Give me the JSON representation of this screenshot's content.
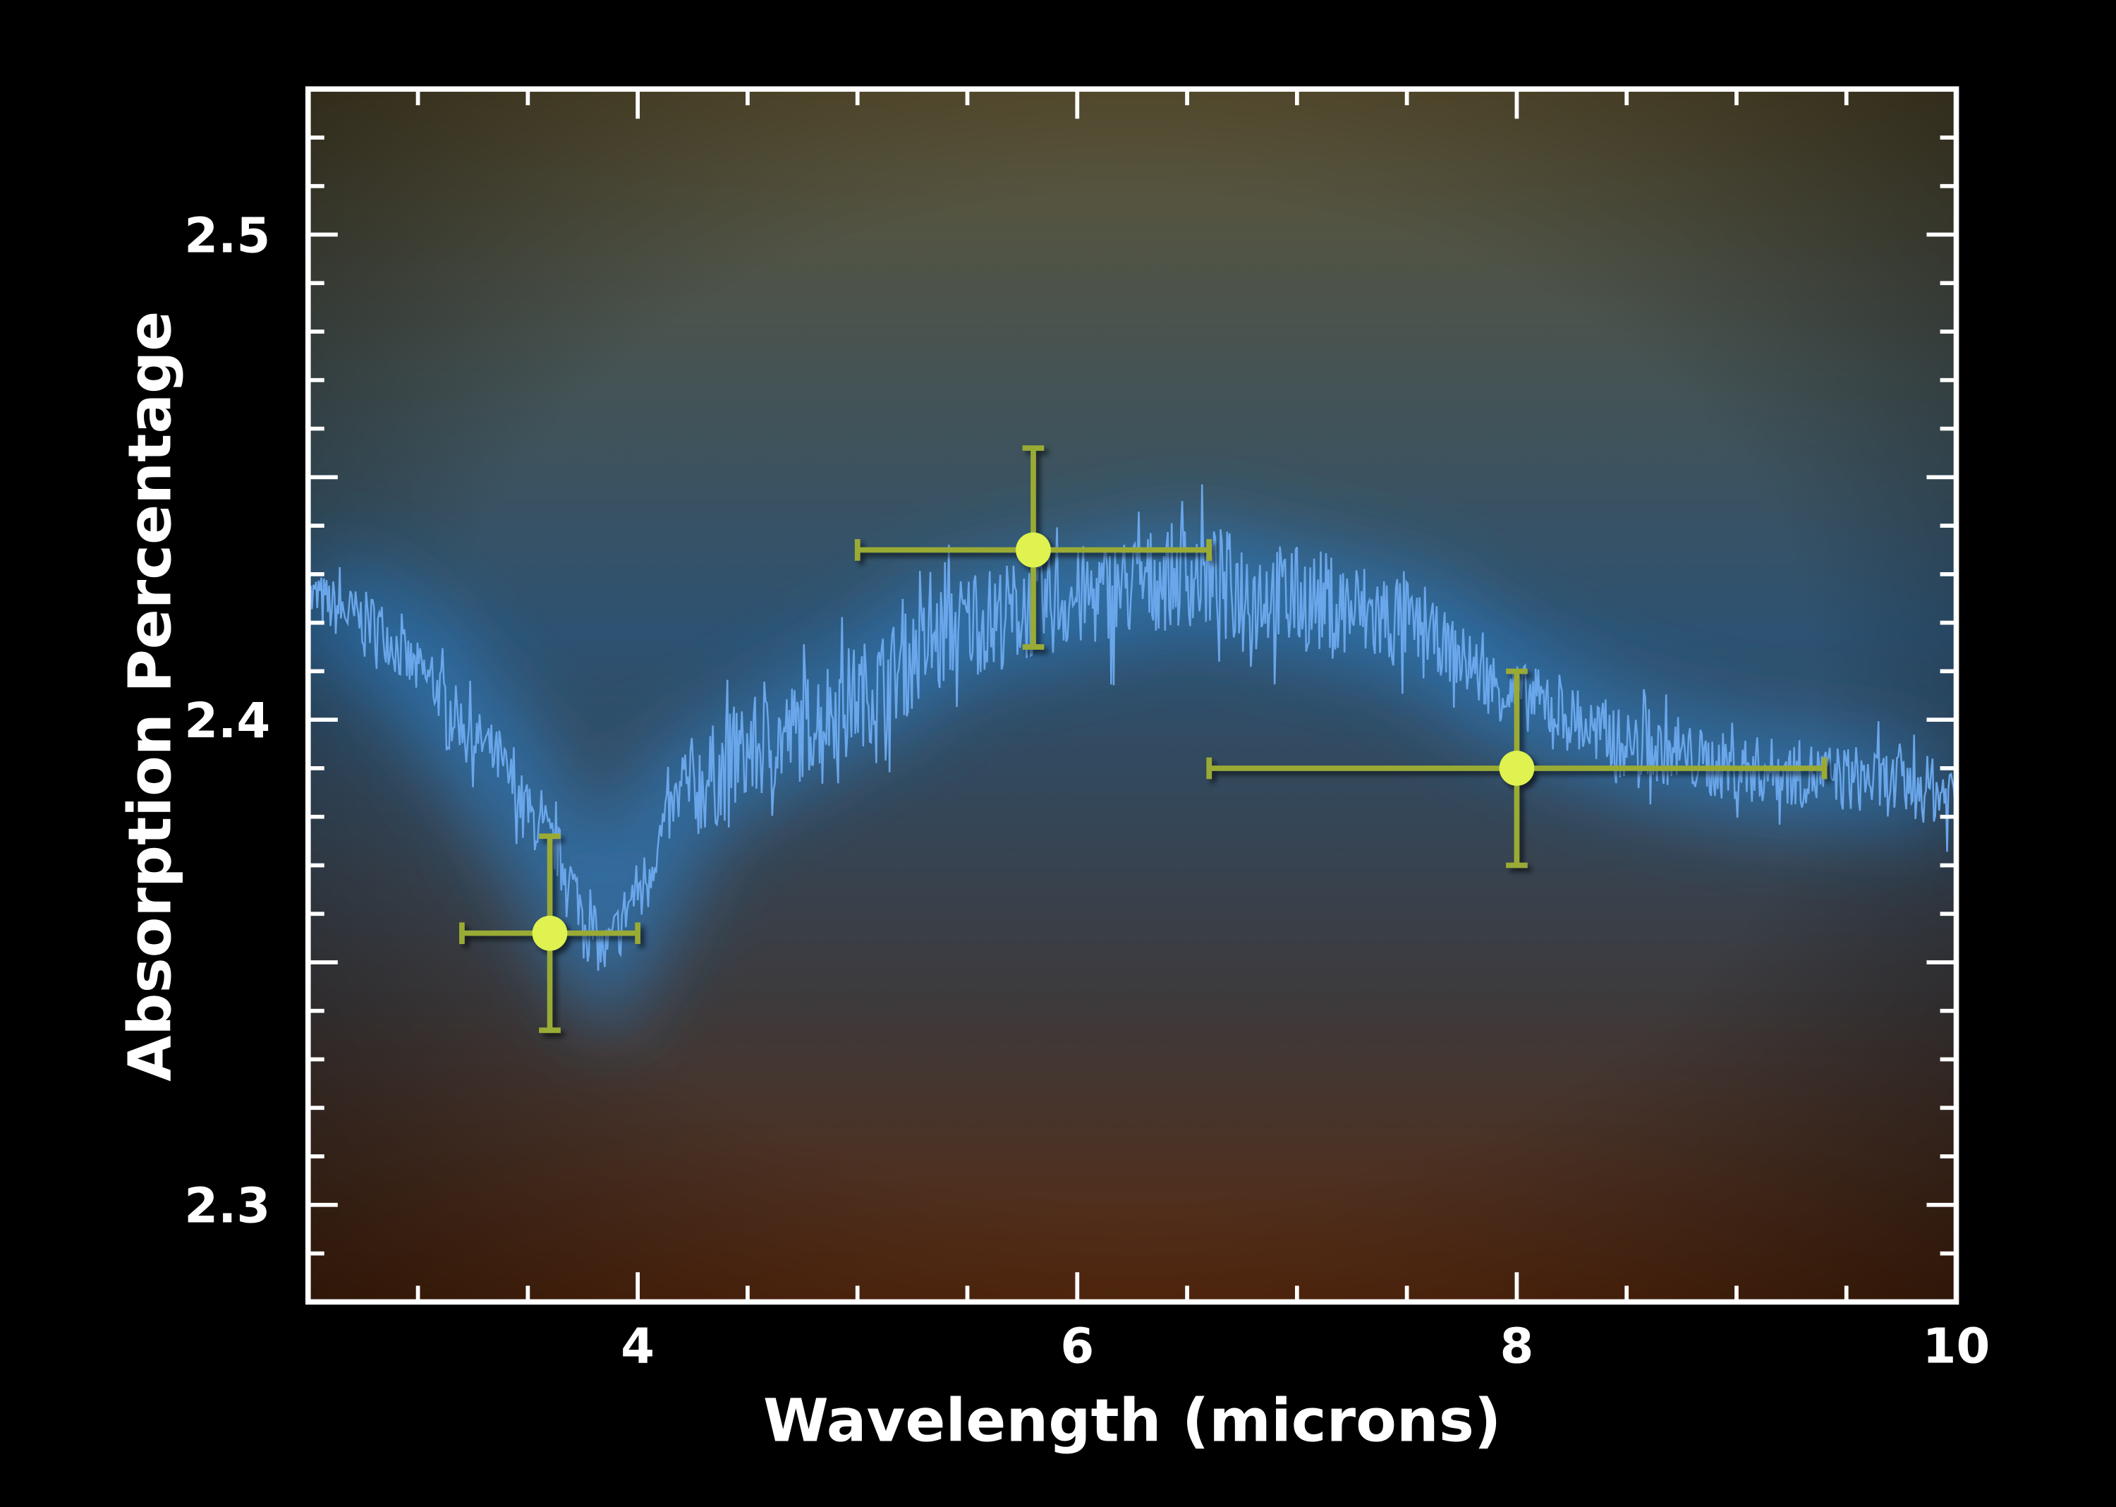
{
  "chart_data": {
    "type": "scatter",
    "title": "",
    "xlabel": "Wavelength (microns)",
    "ylabel": "Absorption Percentage",
    "xlim": [
      2.5,
      10
    ],
    "ylim": [
      2.28,
      2.53
    ],
    "x_ticks": [
      4,
      6,
      8,
      10
    ],
    "x_tick_labels": [
      "4",
      "6",
      "8",
      "10"
    ],
    "y_ticks": [
      2.3,
      2.4,
      2.5
    ],
    "y_tick_labels": [
      "2.3",
      "2.4",
      "2.5"
    ],
    "grid": false,
    "measurements": [
      {
        "x": 3.6,
        "y": 2.356,
        "x_err": [
          3.2,
          4.0
        ],
        "y_err": [
          2.336,
          2.376
        ]
      },
      {
        "x": 5.8,
        "y": 2.435,
        "x_err": [
          5.0,
          6.6
        ],
        "y_err": [
          2.415,
          2.456
        ]
      },
      {
        "x": 8.0,
        "y": 2.39,
        "x_err": [
          6.6,
          9.4
        ],
        "y_err": [
          2.37,
          2.41
        ]
      }
    ],
    "model_spectrum": {
      "x": [
        2.5,
        2.8,
        3.0,
        3.3,
        3.6,
        3.85,
        4.0,
        4.2,
        4.6,
        5.0,
        5.5,
        6.0,
        6.5,
        7.0,
        7.5,
        8.0,
        8.5,
        9.0,
        9.5,
        10.0
      ],
      "y": [
        2.425,
        2.42,
        2.41,
        2.395,
        2.375,
        2.352,
        2.365,
        2.385,
        2.395,
        2.405,
        2.42,
        2.425,
        2.43,
        2.425,
        2.42,
        2.405,
        2.395,
        2.39,
        2.388,
        2.385
      ]
    },
    "colors": {
      "measurement_point": "#dff24f",
      "error_bar": "#9aab35",
      "model_line": "#6aa6ea",
      "background_top": "#5f5433",
      "background_middle": "#2d5878",
      "background_bottom": "#5a2a0e",
      "axes": "#ffffff"
    }
  }
}
